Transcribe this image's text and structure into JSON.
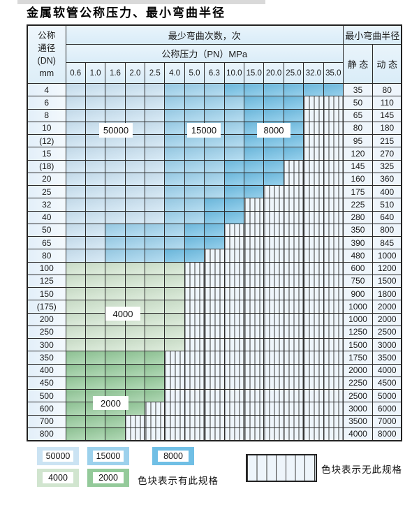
{
  "title": "金属软管公称压力、最小弯曲半径",
  "header": {
    "dn_lines": [
      "公称",
      "通径",
      "(DN)",
      "mm"
    ],
    "bend_cycles_label": "最少弯曲次数，次",
    "pressure_label": "公称压力（PN）MPa",
    "min_radius_label": "最小弯曲半径",
    "static_label": "静 态",
    "dynamic_label": "动 态"
  },
  "legend": {
    "items": [
      {
        "value": "50000"
      },
      {
        "value": "15000"
      },
      {
        "value": "8000"
      },
      {
        "value": "4000"
      },
      {
        "value": "2000"
      }
    ],
    "has_spec_text": "色块表示有此规格",
    "no_spec_text": "色块表示无此规格"
  },
  "colors": {
    "c50000": "#cbe3f3",
    "c15000": "#9cd1ec",
    "c8000": "#70bfe5",
    "c4000": "#d1e5cf",
    "c2000": "#94ca9a",
    "hatchbg": "#eef5fb"
  },
  "chart_data": {
    "type": "heatmap",
    "title": "金属软管公称压力、最小弯曲半径",
    "x_label": "公称压力（PN）MPa",
    "x_tick_labels": [
      "0.6",
      "1.0",
      "1.6",
      "2.0",
      "2.5",
      "4.0",
      "5.0",
      "6.3",
      "10.0",
      "15.0",
      "20.0",
      "25.0",
      "32.0",
      "35.0"
    ],
    "y_label": "公称通径(DN) mm",
    "value_label": "最少弯曲次数，次",
    "legend_note_colored": "色块表示有此规格",
    "legend_note_hatched": "色块表示无此规格",
    "rows": [
      {
        "dn": "4",
        "static": "35",
        "dynamic": "80",
        "cycles": [
          50000,
          50000,
          50000,
          50000,
          50000,
          15000,
          15000,
          15000,
          8000,
          8000,
          8000,
          8000,
          8000,
          8000
        ]
      },
      {
        "dn": "6",
        "static": "50",
        "dynamic": "110",
        "cycles": [
          50000,
          50000,
          50000,
          50000,
          50000,
          15000,
          15000,
          15000,
          15000,
          8000,
          8000,
          8000,
          null,
          null
        ]
      },
      {
        "dn": "8",
        "static": "65",
        "dynamic": "145",
        "cycles": [
          50000,
          50000,
          50000,
          50000,
          50000,
          15000,
          15000,
          15000,
          15000,
          8000,
          8000,
          8000,
          null,
          null
        ]
      },
      {
        "dn": "10",
        "static": "80",
        "dynamic": "180",
        "cycles": [
          50000,
          50000,
          50000,
          50000,
          50000,
          15000,
          15000,
          15000,
          15000,
          8000,
          8000,
          8000,
          null,
          null
        ]
      },
      {
        "dn": "(12)",
        "static": "95",
        "dynamic": "215",
        "cycles": [
          50000,
          50000,
          50000,
          50000,
          50000,
          15000,
          15000,
          15000,
          15000,
          8000,
          8000,
          8000,
          null,
          null
        ]
      },
      {
        "dn": "15",
        "static": "120",
        "dynamic": "270",
        "cycles": [
          50000,
          50000,
          50000,
          50000,
          50000,
          15000,
          15000,
          15000,
          15000,
          8000,
          8000,
          8000,
          null,
          null
        ]
      },
      {
        "dn": "(18)",
        "static": "145",
        "dynamic": "325",
        "cycles": [
          50000,
          50000,
          50000,
          50000,
          50000,
          15000,
          15000,
          15000,
          8000,
          8000,
          8000,
          null,
          null,
          null
        ]
      },
      {
        "dn": "20",
        "static": "160",
        "dynamic": "360",
        "cycles": [
          50000,
          50000,
          50000,
          50000,
          50000,
          15000,
          15000,
          15000,
          8000,
          8000,
          8000,
          null,
          null,
          null
        ]
      },
      {
        "dn": "25",
        "static": "175",
        "dynamic": "400",
        "cycles": [
          50000,
          50000,
          50000,
          50000,
          50000,
          15000,
          15000,
          15000,
          8000,
          8000,
          null,
          null,
          null,
          null
        ]
      },
      {
        "dn": "32",
        "static": "225",
        "dynamic": "510",
        "cycles": [
          50000,
          50000,
          50000,
          50000,
          50000,
          15000,
          15000,
          8000,
          8000,
          null,
          null,
          null,
          null,
          null
        ]
      },
      {
        "dn": "40",
        "static": "280",
        "dynamic": "640",
        "cycles": [
          50000,
          50000,
          50000,
          50000,
          50000,
          15000,
          15000,
          8000,
          8000,
          null,
          null,
          null,
          null,
          null
        ]
      },
      {
        "dn": "50",
        "static": "350",
        "dynamic": "800",
        "cycles": [
          50000,
          50000,
          15000,
          15000,
          15000,
          15000,
          8000,
          8000,
          null,
          null,
          null,
          null,
          null,
          null
        ]
      },
      {
        "dn": "65",
        "static": "390",
        "dynamic": "845",
        "cycles": [
          50000,
          50000,
          15000,
          15000,
          15000,
          15000,
          8000,
          8000,
          null,
          null,
          null,
          null,
          null,
          null
        ]
      },
      {
        "dn": "80",
        "static": "480",
        "dynamic": "1000",
        "cycles": [
          50000,
          50000,
          15000,
          15000,
          15000,
          8000,
          8000,
          null,
          null,
          null,
          null,
          null,
          null,
          null
        ]
      },
      {
        "dn": "100",
        "static": "600",
        "dynamic": "1200",
        "cycles": [
          4000,
          4000,
          4000,
          4000,
          4000,
          4000,
          null,
          null,
          null,
          null,
          null,
          null,
          null,
          null
        ]
      },
      {
        "dn": "125",
        "static": "750",
        "dynamic": "1500",
        "cycles": [
          4000,
          4000,
          4000,
          4000,
          4000,
          4000,
          null,
          null,
          null,
          null,
          null,
          null,
          null,
          null
        ]
      },
      {
        "dn": "150",
        "static": "900",
        "dynamic": "1800",
        "cycles": [
          4000,
          4000,
          4000,
          4000,
          4000,
          4000,
          null,
          null,
          null,
          null,
          null,
          null,
          null,
          null
        ]
      },
      {
        "dn": "(175)",
        "static": "1000",
        "dynamic": "2000",
        "cycles": [
          4000,
          4000,
          4000,
          4000,
          4000,
          4000,
          null,
          null,
          null,
          null,
          null,
          null,
          null,
          null
        ]
      },
      {
        "dn": "200",
        "static": "1000",
        "dynamic": "2000",
        "cycles": [
          4000,
          4000,
          4000,
          4000,
          4000,
          4000,
          null,
          null,
          null,
          null,
          null,
          null,
          null,
          null
        ]
      },
      {
        "dn": "250",
        "static": "1250",
        "dynamic": "2500",
        "cycles": [
          4000,
          4000,
          4000,
          4000,
          4000,
          4000,
          null,
          null,
          null,
          null,
          null,
          null,
          null,
          null
        ]
      },
      {
        "dn": "300",
        "static": "1500",
        "dynamic": "3000",
        "cycles": [
          4000,
          4000,
          4000,
          4000,
          4000,
          4000,
          null,
          null,
          null,
          null,
          null,
          null,
          null,
          null
        ]
      },
      {
        "dn": "350",
        "static": "1750",
        "dynamic": "3500",
        "cycles": [
          2000,
          2000,
          2000,
          2000,
          2000,
          null,
          null,
          null,
          null,
          null,
          null,
          null,
          null,
          null
        ]
      },
      {
        "dn": "400",
        "static": "2000",
        "dynamic": "4000",
        "cycles": [
          2000,
          2000,
          2000,
          2000,
          2000,
          null,
          null,
          null,
          null,
          null,
          null,
          null,
          null,
          null
        ]
      },
      {
        "dn": "450",
        "static": "2250",
        "dynamic": "4500",
        "cycles": [
          2000,
          2000,
          2000,
          2000,
          2000,
          null,
          null,
          null,
          null,
          null,
          null,
          null,
          null,
          null
        ]
      },
      {
        "dn": "500",
        "static": "2500",
        "dynamic": "5000",
        "cycles": [
          2000,
          2000,
          2000,
          2000,
          2000,
          null,
          null,
          null,
          null,
          null,
          null,
          null,
          null,
          null
        ]
      },
      {
        "dn": "600",
        "static": "3000",
        "dynamic": "6000",
        "cycles": [
          2000,
          2000,
          2000,
          2000,
          null,
          null,
          null,
          null,
          null,
          null,
          null,
          null,
          null,
          null
        ]
      },
      {
        "dn": "700",
        "static": "3500",
        "dynamic": "7000",
        "cycles": [
          2000,
          2000,
          2000,
          null,
          null,
          null,
          null,
          null,
          null,
          null,
          null,
          null,
          null,
          null
        ]
      },
      {
        "dn": "800",
        "static": "4000",
        "dynamic": "8000",
        "cycles": [
          2000,
          2000,
          2000,
          null,
          null,
          null,
          null,
          null,
          null,
          null,
          null,
          null,
          null,
          null
        ]
      }
    ]
  }
}
